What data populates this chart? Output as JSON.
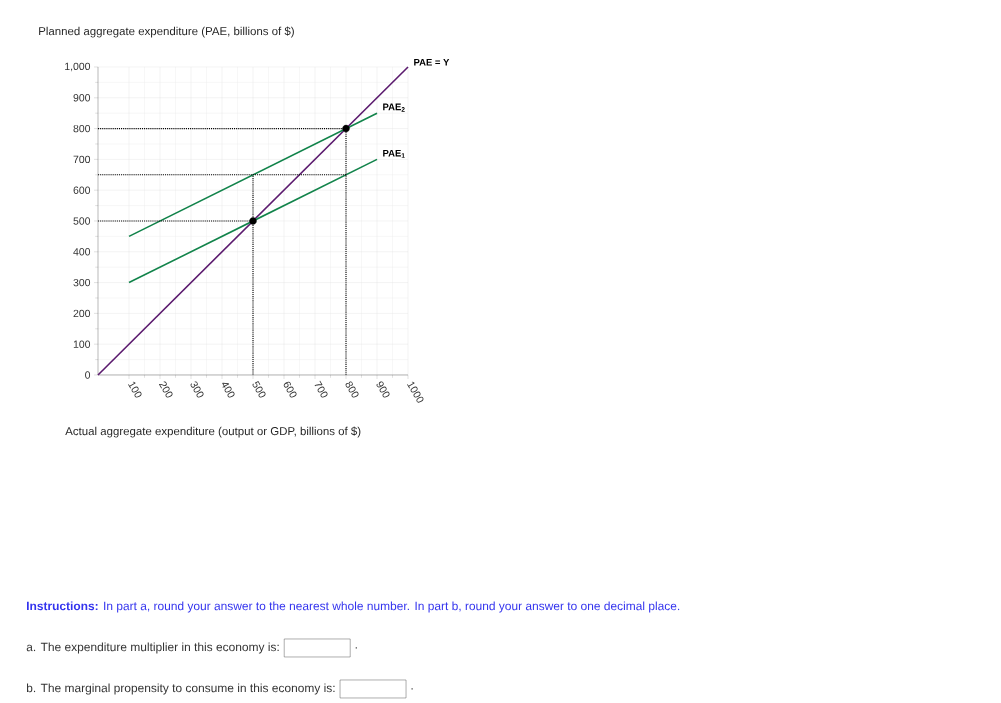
{
  "chart_data": {
    "type": "line",
    "ylabel": "Planned aggregate expenditure (PAE, billions of $)",
    "xlabel": "Actual aggregate expenditure (output or GDP, billions of $)",
    "xlim": [
      0,
      1000
    ],
    "ylim": [
      0,
      1000
    ],
    "xticks": [
      100,
      200,
      300,
      400,
      500,
      600,
      700,
      800,
      900,
      1000
    ],
    "yticks": [
      0,
      100,
      200,
      300,
      400,
      500,
      600,
      700,
      800,
      900,
      {
        "value": 1000,
        "label": "1,000"
      }
    ],
    "grid": true,
    "series": [
      {
        "name": "PAE = Y",
        "color": "#5b1a6e",
        "x": [
          0,
          1000
        ],
        "values": [
          0,
          1000
        ]
      },
      {
        "name": "PAE$_{1}$",
        "color": "#11834a",
        "x": [
          100,
          900
        ],
        "values": [
          300,
          700
        ]
      },
      {
        "name": "PAE$_{2}$",
        "color": "#11834a",
        "x": [
          100,
          900
        ],
        "values": [
          450,
          850
        ]
      },
      {
        "type": "line",
        "line_style": "dotted",
        "color": "#000000",
        "x": [
          0,
          500,
          500
        ],
        "values": [
          500,
          500,
          0
        ]
      },
      {
        "type": "line",
        "line_style": "dotted",
        "color": "#000000",
        "x": [
          0,
          800,
          800
        ],
        "values": [
          800,
          800,
          0
        ]
      },
      {
        "type": "line",
        "line_style": "dotted",
        "color": "#000000",
        "x": [
          0,
          800
        ],
        "values": [
          650,
          650
        ]
      },
      {
        "type": "line",
        "line_style": "dotted",
        "color": "#000000",
        "x": [
          500,
          500
        ],
        "values": [
          500,
          650
        ]
      },
      {
        "type": "scatter",
        "color": "#000000",
        "x": [
          500,
          800
        ],
        "values": [
          500,
          800
        ]
      }
    ],
    "annotations": [
      "**Instructions:** In part a, round your answer to the nearest whole number. In part b, round your answer to one decimal place.",
      "a. The expenditure multiplier in this economy is:",
      ".",
      "b. The marginal propensity to consume in this economy is:",
      "."
    ]
  }
}
